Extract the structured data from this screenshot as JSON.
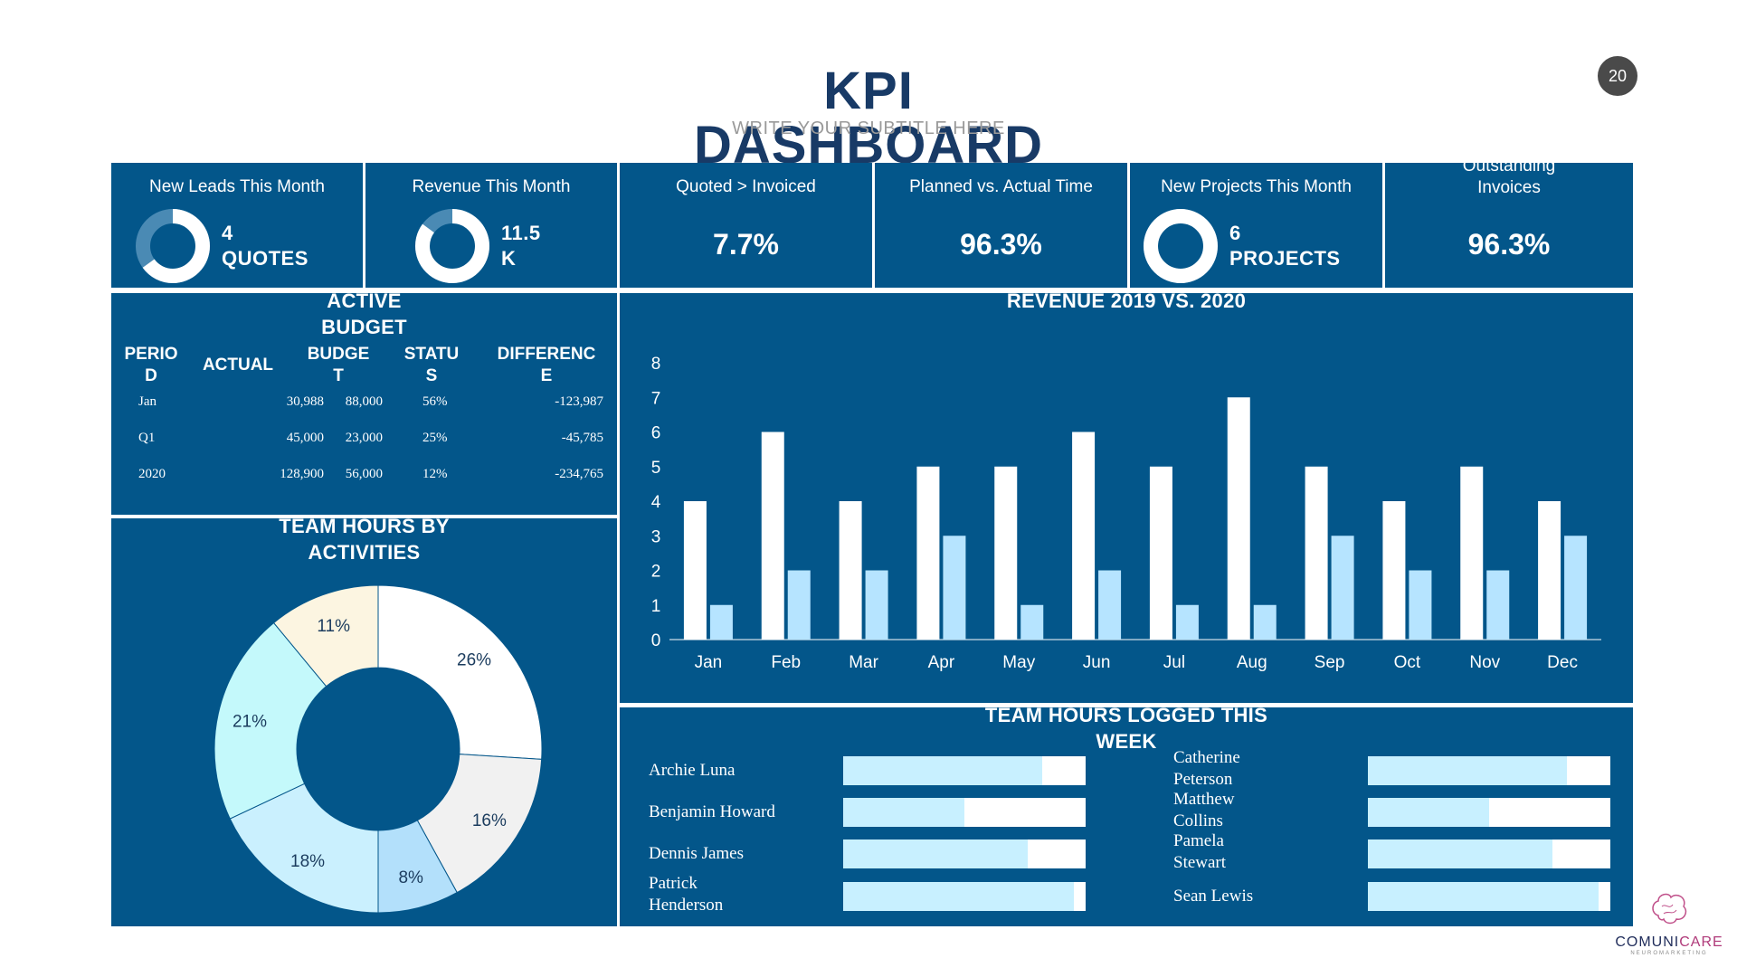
{
  "header": {
    "title_line1": "KPI",
    "title_line2": "DASHBOARD",
    "subtitle": "WRITE YOUR SUBTITLE HERE",
    "page_number": "20"
  },
  "kpis": [
    {
      "label": "New Leads This Month",
      "value_line1": "4",
      "value_line2": "QUOTES",
      "donut_fraction": 0.65
    },
    {
      "label": "Revenue This Month",
      "value_line1": "11.5",
      "value_line2": "K",
      "donut_fraction": 0.85
    },
    {
      "label": "Quoted > Invoiced",
      "value": "7.7%"
    },
    {
      "label": "Planned vs. Actual Time",
      "value": "96.3%"
    },
    {
      "label": "New Projects This Month",
      "value_line1": "6",
      "value_line2": "PROJECTS",
      "donut_fraction": 1.0
    },
    {
      "label_line1": "Outstanding",
      "label_line2": "Invoices",
      "value": "96.3%"
    }
  ],
  "budget": {
    "title_line1": "ACTIVE",
    "title_line2": "BUDGET",
    "headers": [
      {
        "l1": "PERIO",
        "l2": "D"
      },
      {
        "l1": "ACTUAL",
        "l2": ""
      },
      {
        "l1": "BUDGE",
        "l2": "T"
      },
      {
        "l1": "STATU",
        "l2": "S"
      },
      {
        "l1": "DIFFERENC",
        "l2": "E"
      }
    ],
    "rows": [
      [
        "Jan",
        "30,988",
        "88,000",
        "56%",
        "-123,987"
      ],
      [
        "Q1",
        "45,000",
        "23,000",
        "25%",
        "-45,785"
      ],
      [
        "2020",
        "128,900",
        "56,000",
        "12%",
        "-234,765"
      ]
    ]
  },
  "chart_data": [
    {
      "type": "bar",
      "title": "REVENUE 2019 VS. 2020",
      "categories": [
        "Jan",
        "Feb",
        "Mar",
        "Apr",
        "May",
        "Jun",
        "Jul",
        "Aug",
        "Sep",
        "Oct",
        "Nov",
        "Dec"
      ],
      "series": [
        {
          "name": "2019",
          "values": [
            4,
            6,
            4,
            5,
            5,
            6,
            5,
            7,
            5,
            4,
            5,
            4
          ],
          "color": "#ffffff"
        },
        {
          "name": "2020",
          "values": [
            1,
            2,
            2,
            3,
            1,
            2,
            1,
            1,
            3,
            2,
            2,
            3
          ],
          "color": "#b6e4ff"
        }
      ],
      "yticks": [
        "0",
        "1",
        "2",
        "3",
        "4",
        "5",
        "6",
        "7",
        "8"
      ],
      "ylim": [
        0,
        8
      ],
      "xlabel": "",
      "ylabel": "",
      "legend": "none"
    },
    {
      "type": "pie",
      "title": "TEAM HOURS BY ACTIVITIES",
      "labels": [
        "26%",
        "16%",
        "8%",
        "18%",
        "21%",
        "11%"
      ],
      "values": [
        26,
        16,
        8,
        18,
        21,
        11
      ],
      "colors": [
        "#ffffff",
        "#f1f1f1",
        "#b3e0fb",
        "#caf0fe",
        "#c4f9fb",
        "#fcf5e1"
      ],
      "donut": true
    },
    {
      "type": "bar",
      "orientation": "horizontal",
      "title": "TEAM HOURS LOGGED THIS WEEK",
      "people": [
        {
          "name_l1": "Archie Luna",
          "name_l2": "",
          "value": 0.82
        },
        {
          "name_l1": "Benjamin Howard",
          "name_l2": "",
          "value": 0.5
        },
        {
          "name_l1": "Dennis James",
          "name_l2": "",
          "value": 0.76
        },
        {
          "name_l1": "Patrick",
          "name_l2": "Henderson",
          "value": 0.95
        },
        {
          "name_l1": "Catherine",
          "name_l2": "Peterson",
          "value": 0.82
        },
        {
          "name_l1": "Matthew",
          "name_l2": "Collins",
          "value": 0.5
        },
        {
          "name_l1": "Pamela",
          "name_l2": "Stewart",
          "value": 0.76
        },
        {
          "name_l1": "Sean Lewis",
          "name_l2": "",
          "value": 0.95
        }
      ],
      "fill_color": "#c8f0ff",
      "track_color": "#ffffff"
    }
  ],
  "logo": {
    "brand_a": "COMUNI",
    "brand_b": "CARE",
    "tagline": "NEUROMARKETING"
  },
  "colors": {
    "panel": "#03568a",
    "title": "#183a66"
  }
}
